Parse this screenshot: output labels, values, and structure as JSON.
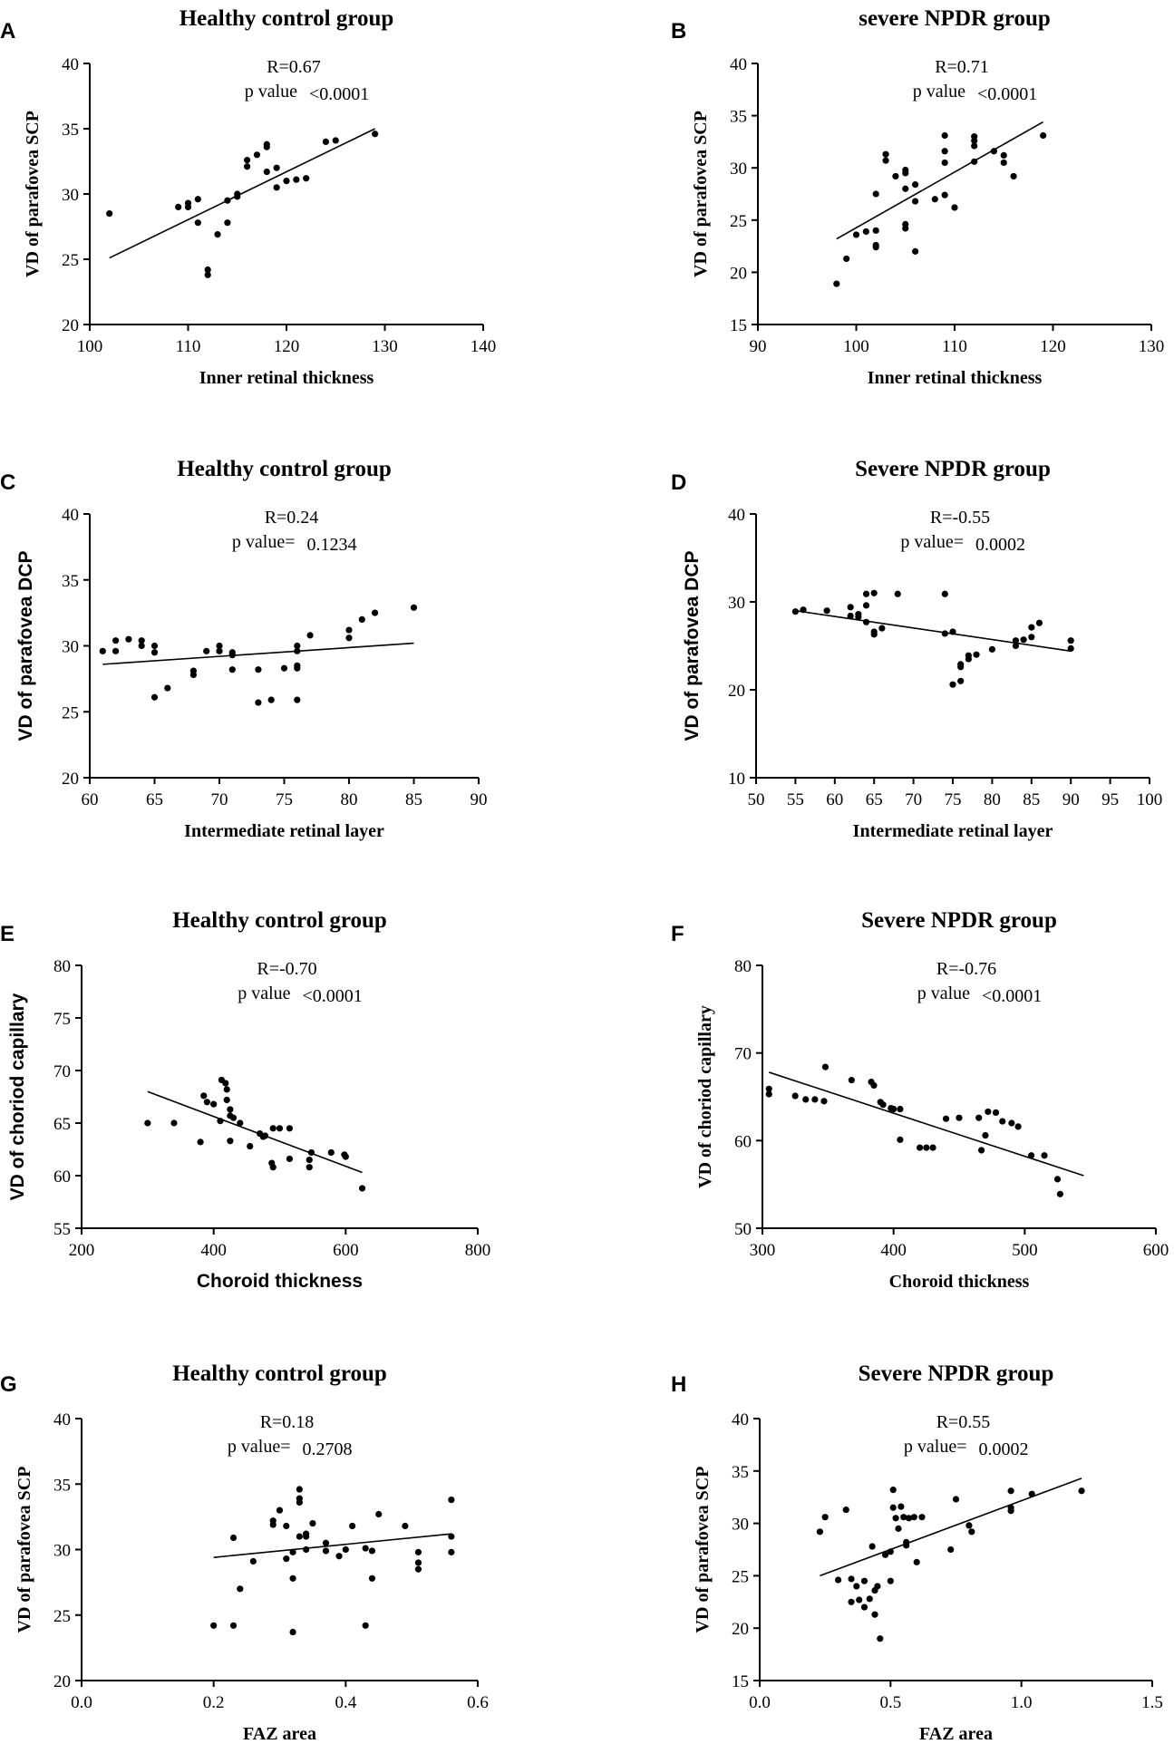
{
  "chart_data": [
    {
      "panel": "A",
      "type": "scatter",
      "title": "Healthy control group",
      "xlabel": "Inner retinal thickness",
      "ylabel": "VD of parafovea SCP",
      "xlim": [
        100,
        140
      ],
      "ylim": [
        20,
        40
      ],
      "xticks": [
        100,
        110,
        120,
        130,
        140
      ],
      "yticks": [
        20,
        25,
        30,
        35,
        40
      ],
      "r_text": "R=0.67",
      "p_label": "p value",
      "p_value": "<0.0001",
      "fit": [
        [
          102,
          25.1
        ],
        [
          129,
          35.0
        ]
      ],
      "points": [
        [
          102,
          28.5
        ],
        [
          109,
          29.0
        ],
        [
          110,
          29.3
        ],
        [
          110,
          29.0
        ],
        [
          111,
          29.6
        ],
        [
          111,
          27.8
        ],
        [
          112,
          24.2
        ],
        [
          112,
          23.8
        ],
        [
          113,
          26.9
        ],
        [
          114,
          27.8
        ],
        [
          114,
          29.5
        ],
        [
          115,
          30.0
        ],
        [
          115,
          29.8
        ],
        [
          116,
          32.6
        ],
        [
          116,
          32.1
        ],
        [
          117,
          33.0
        ],
        [
          118,
          33.8
        ],
        [
          118,
          33.6
        ],
        [
          118,
          31.7
        ],
        [
          119,
          30.5
        ],
        [
          119,
          32.0
        ],
        [
          120,
          31.0
        ],
        [
          121,
          31.1
        ],
        [
          122,
          31.2
        ],
        [
          124,
          34.0
        ],
        [
          125,
          34.1
        ],
        [
          129,
          34.6
        ]
      ]
    },
    {
      "panel": "B",
      "type": "scatter",
      "title": "severe NPDR group",
      "xlabel": "Inner retinal thickness",
      "ylabel": "VD of parafovea SCP",
      "xlim": [
        90,
        130
      ],
      "ylim": [
        15,
        40
      ],
      "xticks": [
        90,
        100,
        110,
        120,
        130
      ],
      "yticks": [
        15,
        20,
        25,
        30,
        35,
        40
      ],
      "r_text": "R=0.71",
      "p_label": "p value",
      "p_value": "<0.0001",
      "fit": [
        [
          98,
          23.2
        ],
        [
          119,
          34.4
        ]
      ],
      "points": [
        [
          98,
          18.9
        ],
        [
          99,
          21.3
        ],
        [
          100,
          23.6
        ],
        [
          101,
          23.9
        ],
        [
          102,
          22.6
        ],
        [
          102,
          22.4
        ],
        [
          102,
          24.0
        ],
        [
          102,
          27.5
        ],
        [
          103,
          31.3
        ],
        [
          103,
          30.7
        ],
        [
          104,
          29.2
        ],
        [
          105,
          29.8
        ],
        [
          105,
          29.5
        ],
        [
          105,
          28.0
        ],
        [
          105,
          24.6
        ],
        [
          105,
          24.2
        ],
        [
          106,
          28.4
        ],
        [
          106,
          26.8
        ],
        [
          106,
          22.0
        ],
        [
          108,
          27.0
        ],
        [
          109,
          33.1
        ],
        [
          109,
          31.6
        ],
        [
          109,
          30.5
        ],
        [
          109,
          27.4
        ],
        [
          110,
          26.2
        ],
        [
          112,
          33.0
        ],
        [
          112,
          32.6
        ],
        [
          112,
          32.1
        ],
        [
          112,
          30.6
        ],
        [
          114,
          31.6
        ],
        [
          115,
          31.2
        ],
        [
          115,
          30.5
        ],
        [
          116,
          29.2
        ],
        [
          119,
          33.1
        ]
      ]
    },
    {
      "panel": "C",
      "type": "scatter",
      "title": "Healthy control group",
      "xlabel": "Intermediate retinal layer",
      "ylabel": "VD of parafovea DCP",
      "xlim": [
        60,
        90
      ],
      "ylim": [
        20,
        40
      ],
      "xticks": [
        60,
        65,
        70,
        75,
        80,
        85,
        90
      ],
      "yticks": [
        20,
        25,
        30,
        35,
        40
      ],
      "r_text": "R=0.24",
      "p_label": "p value=",
      "p_value": "0.1234",
      "fit": [
        [
          61,
          28.6
        ],
        [
          85,
          30.2
        ]
      ],
      "points": [
        [
          61,
          29.6
        ],
        [
          62,
          30.4
        ],
        [
          62,
          29.6
        ],
        [
          63,
          30.5
        ],
        [
          64,
          30.4
        ],
        [
          64,
          30.0
        ],
        [
          65,
          30.0
        ],
        [
          65,
          29.5
        ],
        [
          65,
          26.1
        ],
        [
          66,
          26.8
        ],
        [
          68,
          28.1
        ],
        [
          68,
          27.8
        ],
        [
          69,
          29.6
        ],
        [
          70,
          30.0
        ],
        [
          70,
          29.6
        ],
        [
          71,
          29.3
        ],
        [
          71,
          29.5
        ],
        [
          71,
          28.2
        ],
        [
          73,
          28.2
        ],
        [
          73,
          25.7
        ],
        [
          74,
          25.9
        ],
        [
          75,
          28.3
        ],
        [
          76,
          30.0
        ],
        [
          76,
          29.6
        ],
        [
          76,
          28.5
        ],
        [
          76,
          28.3
        ],
        [
          76,
          25.9
        ],
        [
          77,
          30.8
        ],
        [
          80,
          31.2
        ],
        [
          80,
          30.6
        ],
        [
          81,
          32.0
        ],
        [
          82,
          32.5
        ],
        [
          85,
          32.9
        ]
      ]
    },
    {
      "panel": "D",
      "type": "scatter",
      "title": "Severe NPDR group",
      "xlabel": "Intermediate retinal layer",
      "ylabel": "VD of parafovea DCP",
      "xlim": [
        50,
        100
      ],
      "ylim": [
        10,
        40
      ],
      "xticks": [
        50,
        55,
        60,
        65,
        70,
        75,
        80,
        85,
        90,
        95,
        100
      ],
      "yticks": [
        10,
        20,
        30,
        40
      ],
      "r_text": "R=-0.55",
      "p_label": "p value=",
      "p_value": "0.0002",
      "fit": [
        [
          55,
          29.0
        ],
        [
          90,
          24.4
        ]
      ],
      "points": [
        [
          55,
          28.9
        ],
        [
          56,
          29.1
        ],
        [
          59,
          29.0
        ],
        [
          62,
          28.4
        ],
        [
          62,
          29.4
        ],
        [
          63,
          28.3
        ],
        [
          63,
          28.6
        ],
        [
          64,
          29.6
        ],
        [
          64,
          27.7
        ],
        [
          64,
          30.9
        ],
        [
          65,
          31.0
        ],
        [
          65,
          26.3
        ],
        [
          65,
          26.6
        ],
        [
          66,
          27.0
        ],
        [
          68,
          30.9
        ],
        [
          74,
          30.9
        ],
        [
          74,
          26.4
        ],
        [
          75,
          20.6
        ],
        [
          75,
          26.6
        ],
        [
          76,
          22.6
        ],
        [
          76,
          21.0
        ],
        [
          76,
          22.9
        ],
        [
          77,
          23.9
        ],
        [
          77,
          23.5
        ],
        [
          78,
          24.0
        ],
        [
          80,
          24.6
        ],
        [
          83,
          25.0
        ],
        [
          83,
          25.6
        ],
        [
          84,
          25.7
        ],
        [
          85,
          26.0
        ],
        [
          85,
          27.1
        ],
        [
          86,
          27.6
        ],
        [
          90,
          25.6
        ],
        [
          90,
          24.7
        ]
      ]
    },
    {
      "panel": "E",
      "type": "scatter",
      "title": "Healthy control group",
      "xlabel": "Choroid thickness",
      "ylabel": "VD of choriod capillary",
      "xlim": [
        200,
        800
      ],
      "ylim": [
        55,
        80
      ],
      "xticks": [
        200,
        400,
        600,
        800
      ],
      "yticks": [
        55,
        60,
        65,
        70,
        75,
        80
      ],
      "r_text": "R=-0.70",
      "p_label": "p value",
      "p_value": "<0.0001",
      "fit": [
        [
          300,
          68.0
        ],
        [
          625,
          60.3
        ]
      ],
      "points": [
        [
          300,
          65.0
        ],
        [
          340,
          65.0
        ],
        [
          380,
          63.2
        ],
        [
          385,
          67.6
        ],
        [
          390,
          67.0
        ],
        [
          400,
          66.8
        ],
        [
          410,
          65.2
        ],
        [
          412,
          69.1
        ],
        [
          418,
          68.8
        ],
        [
          420,
          67.2
        ],
        [
          420,
          68.2
        ],
        [
          425,
          66.3
        ],
        [
          425,
          65.7
        ],
        [
          425,
          63.3
        ],
        [
          430,
          65.5
        ],
        [
          440,
          65.0
        ],
        [
          455,
          62.8
        ],
        [
          470,
          64.0
        ],
        [
          475,
          63.7
        ],
        [
          478,
          63.8
        ],
        [
          488,
          61.2
        ],
        [
          490,
          60.8
        ],
        [
          490,
          64.5
        ],
        [
          500,
          64.5
        ],
        [
          515,
          64.5
        ],
        [
          515,
          61.6
        ],
        [
          545,
          61.5
        ],
        [
          545,
          60.8
        ],
        [
          548,
          62.2
        ],
        [
          578,
          62.2
        ],
        [
          598,
          62.0
        ],
        [
          600,
          61.8
        ],
        [
          625,
          58.8
        ]
      ]
    },
    {
      "panel": "F",
      "type": "scatter",
      "title": "Severe NPDR group",
      "xlabel": "Choroid thickness",
      "ylabel": "VD of choriod capillary",
      "xlim": [
        300,
        600
      ],
      "ylim": [
        50,
        80
      ],
      "xticks": [
        300,
        400,
        500,
        600
      ],
      "yticks": [
        50,
        60,
        70,
        80
      ],
      "r_text": "R=-0.76",
      "p_label": "p value",
      "p_value": "<0.0001",
      "fit": [
        [
          305,
          67.8
        ],
        [
          545,
          56.0
        ]
      ],
      "points": [
        [
          305,
          65.9
        ],
        [
          305,
          65.3
        ],
        [
          325,
          65.1
        ],
        [
          333,
          64.7
        ],
        [
          340,
          64.7
        ],
        [
          347,
          64.5
        ],
        [
          348,
          68.4
        ],
        [
          368,
          66.9
        ],
        [
          383,
          66.7
        ],
        [
          385,
          66.3
        ],
        [
          390,
          64.4
        ],
        [
          392,
          64.1
        ],
        [
          398,
          63.7
        ],
        [
          400,
          63.6
        ],
        [
          405,
          63.6
        ],
        [
          405,
          60.1
        ],
        [
          420,
          59.2
        ],
        [
          425,
          59.2
        ],
        [
          430,
          59.2
        ],
        [
          440,
          62.5
        ],
        [
          450,
          62.6
        ],
        [
          465,
          62.6
        ],
        [
          467,
          58.9
        ],
        [
          470,
          60.6
        ],
        [
          472,
          63.3
        ],
        [
          478,
          63.2
        ],
        [
          483,
          62.2
        ],
        [
          490,
          62.0
        ],
        [
          495,
          61.6
        ],
        [
          505,
          58.3
        ],
        [
          515,
          58.3
        ],
        [
          525,
          55.6
        ],
        [
          527,
          53.9
        ]
      ]
    },
    {
      "panel": "G",
      "type": "scatter",
      "title": "Healthy control group",
      "xlabel": "FAZ area",
      "ylabel": "VD of parafovea SCP",
      "xlim": [
        0.0,
        0.6
      ],
      "ylim": [
        20,
        40
      ],
      "xticks": [
        0.0,
        0.2,
        0.4,
        0.6
      ],
      "yticks": [
        20,
        25,
        30,
        35,
        40
      ],
      "r_text": "R=0.18",
      "p_label": "p value=",
      "p_value": "0.2708",
      "fit": [
        [
          0.2,
          29.4
        ],
        [
          0.56,
          31.2
        ]
      ],
      "points": [
        [
          0.2,
          24.2
        ],
        [
          0.23,
          30.9
        ],
        [
          0.23,
          24.2
        ],
        [
          0.24,
          27.0
        ],
        [
          0.26,
          29.1
        ],
        [
          0.29,
          31.9
        ],
        [
          0.29,
          32.2
        ],
        [
          0.3,
          33.0
        ],
        [
          0.31,
          31.8
        ],
        [
          0.31,
          29.3
        ],
        [
          0.32,
          29.8
        ],
        [
          0.32,
          27.8
        ],
        [
          0.32,
          23.7
        ],
        [
          0.33,
          34.6
        ],
        [
          0.33,
          33.9
        ],
        [
          0.33,
          33.6
        ],
        [
          0.33,
          31.0
        ],
        [
          0.34,
          31.0
        ],
        [
          0.34,
          30.0
        ],
        [
          0.34,
          31.2
        ],
        [
          0.35,
          32.0
        ],
        [
          0.37,
          30.5
        ],
        [
          0.37,
          29.9
        ],
        [
          0.39,
          29.5
        ],
        [
          0.4,
          30.0
        ],
        [
          0.41,
          31.8
        ],
        [
          0.43,
          30.1
        ],
        [
          0.43,
          24.2
        ],
        [
          0.44,
          27.8
        ],
        [
          0.44,
          29.9
        ],
        [
          0.45,
          32.7
        ],
        [
          0.49,
          31.8
        ],
        [
          0.51,
          29.8
        ],
        [
          0.51,
          29.0
        ],
        [
          0.51,
          28.5
        ],
        [
          0.56,
          33.8
        ],
        [
          0.56,
          31.0
        ],
        [
          0.56,
          29.8
        ]
      ]
    },
    {
      "panel": "H",
      "type": "scatter",
      "title": "Severe NPDR group",
      "xlabel": "FAZ area",
      "ylabel": "VD of parafovea SCP",
      "xlim": [
        0.0,
        1.5
      ],
      "ylim": [
        15,
        40
      ],
      "xticks": [
        0.0,
        0.5,
        1.0,
        1.5
      ],
      "yticks": [
        15,
        20,
        25,
        30,
        35,
        40
      ],
      "r_text": "R=0.55",
      "p_label": "p value=",
      "p_value": "0.0002",
      "fit": [
        [
          0.23,
          25.0
        ],
        [
          1.23,
          34.3
        ]
      ],
      "points": [
        [
          0.23,
          29.2
        ],
        [
          0.25,
          30.6
        ],
        [
          0.3,
          24.6
        ],
        [
          0.33,
          31.3
        ],
        [
          0.35,
          22.5
        ],
        [
          0.35,
          24.7
        ],
        [
          0.37,
          24.0
        ],
        [
          0.38,
          22.7
        ],
        [
          0.4,
          22.0
        ],
        [
          0.4,
          24.5
        ],
        [
          0.42,
          22.8
        ],
        [
          0.43,
          27.8
        ],
        [
          0.44,
          23.6
        ],
        [
          0.44,
          21.3
        ],
        [
          0.45,
          24.0
        ],
        [
          0.46,
          19.0
        ],
        [
          0.48,
          27.0
        ],
        [
          0.5,
          24.5
        ],
        [
          0.5,
          27.3
        ],
        [
          0.51,
          33.2
        ],
        [
          0.51,
          31.5
        ],
        [
          0.52,
          30.5
        ],
        [
          0.53,
          29.5
        ],
        [
          0.54,
          31.6
        ],
        [
          0.55,
          30.6
        ],
        [
          0.56,
          28.2
        ],
        [
          0.56,
          27.9
        ],
        [
          0.57,
          30.5
        ],
        [
          0.59,
          30.6
        ],
        [
          0.6,
          26.3
        ],
        [
          0.62,
          30.6
        ],
        [
          0.73,
          27.5
        ],
        [
          0.75,
          32.3
        ],
        [
          0.8,
          29.8
        ],
        [
          0.81,
          29.2
        ],
        [
          0.96,
          33.1
        ],
        [
          0.96,
          31.5
        ],
        [
          0.96,
          31.2
        ],
        [
          1.04,
          32.8
        ],
        [
          1.23,
          33.1
        ]
      ]
    }
  ]
}
